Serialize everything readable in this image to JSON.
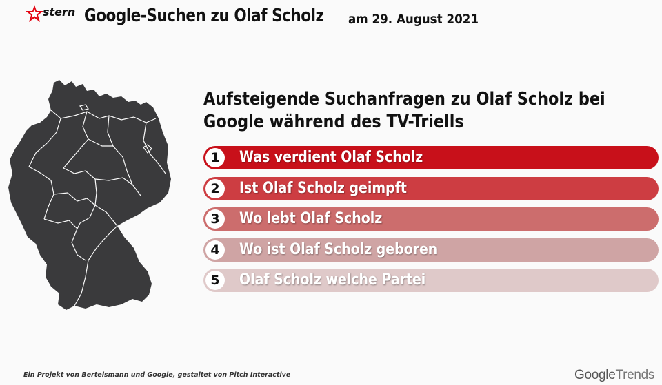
{
  "header": {
    "logo_text": "stern",
    "title": "Google-Suchen zu Olaf Scholz",
    "date": "am 29. August 2021"
  },
  "chart_data": {
    "type": "table",
    "title": "Aufsteigende Suchanfragen zu Olaf Scholz bei Google während des TV-Triells",
    "title_lines": [
      "Aufsteigende Suchanfragen zu Olaf Scholz bei",
      "Google während des TV-Triells"
    ],
    "rows": [
      {
        "rank": "1",
        "label": "Was verdient Olaf Scholz",
        "color": "#c8101a"
      },
      {
        "rank": "2",
        "label": "Ist Olaf Scholz geimpft",
        "color": "#cd3d42"
      },
      {
        "rank": "3",
        "label": "Wo lebt Olaf Scholz",
        "color": "#cc6d6d"
      },
      {
        "rank": "4",
        "label": "Wo ist Olaf Scholz geboren",
        "color": "#cfa4a4"
      },
      {
        "rank": "5",
        "label": "Olaf Scholz welche Partei",
        "color": "#dfc9c9"
      }
    ]
  },
  "footer": {
    "note": "Ein Projekt von Bertelsmann und Google, gestaltet von Pitch Interactive",
    "brand_google": "Google",
    "brand_trends": "Trends"
  }
}
